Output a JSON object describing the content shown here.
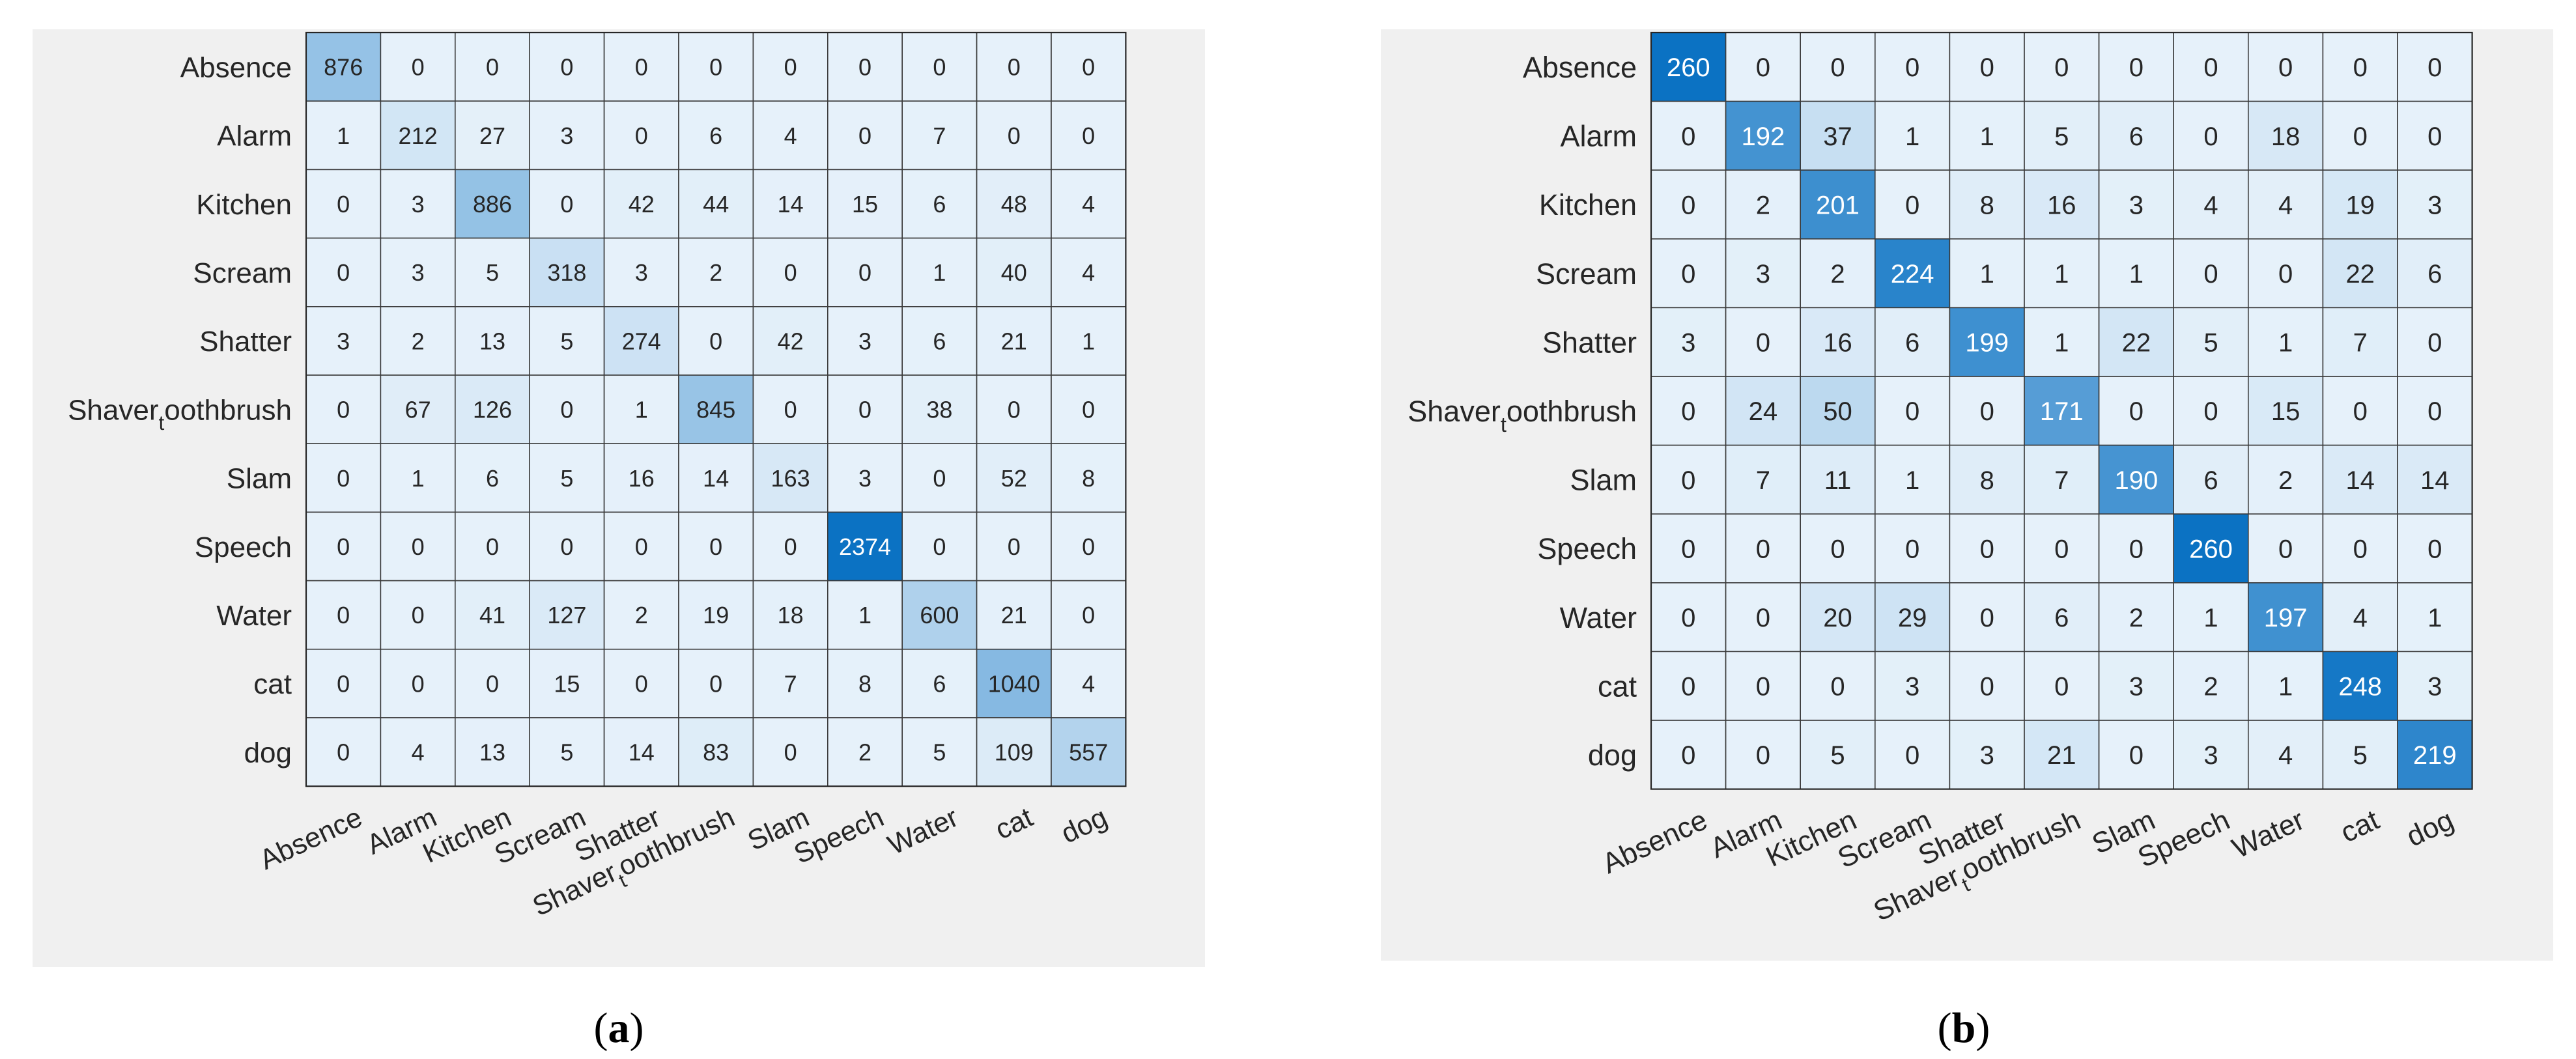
{
  "figure": {
    "panels": [
      {
        "caption_open": "(",
        "caption_letter": "a",
        "caption_close": ")"
      },
      {
        "caption_open": "(",
        "caption_letter": "b",
        "caption_close": ")"
      }
    ]
  },
  "chart_data": [
    {
      "type": "heatmap",
      "title": "",
      "row_labels": [
        "Absence",
        "Alarm",
        "Kitchen",
        "Scream",
        "Shatter",
        "Shaver_toothbrush",
        "Slam",
        "Speech",
        "Water",
        "cat",
        "dog"
      ],
      "col_labels": [
        "Absence",
        "Alarm",
        "Kitchen",
        "Scream",
        "Shatter",
        "Shaver_toothbrush",
        "Slam",
        "Speech",
        "Water",
        "cat",
        "dog"
      ],
      "values": [
        [
          876,
          0,
          0,
          0,
          0,
          0,
          0,
          0,
          0,
          0,
          0
        ],
        [
          1,
          212,
          27,
          3,
          0,
          6,
          4,
          0,
          7,
          0,
          0
        ],
        [
          0,
          3,
          886,
          0,
          42,
          44,
          14,
          15,
          6,
          48,
          4
        ],
        [
          0,
          3,
          5,
          318,
          3,
          2,
          0,
          0,
          1,
          40,
          4
        ],
        [
          3,
          2,
          13,
          5,
          274,
          0,
          42,
          3,
          6,
          21,
          1
        ],
        [
          0,
          67,
          126,
          0,
          1,
          845,
          0,
          0,
          38,
          0,
          0
        ],
        [
          0,
          1,
          6,
          5,
          16,
          14,
          163,
          3,
          0,
          52,
          8
        ],
        [
          0,
          0,
          0,
          0,
          0,
          0,
          0,
          2374,
          0,
          0,
          0
        ],
        [
          0,
          0,
          41,
          127,
          2,
          19,
          18,
          1,
          600,
          21,
          0
        ],
        [
          0,
          0,
          0,
          15,
          0,
          0,
          7,
          8,
          6,
          1040,
          4
        ],
        [
          0,
          4,
          13,
          5,
          14,
          83,
          0,
          2,
          5,
          109,
          557
        ]
      ],
      "color_low": "#e6f1fa",
      "color_high": "#0b72c3"
    },
    {
      "type": "heatmap",
      "title": "",
      "row_labels": [
        "Absence",
        "Alarm",
        "Kitchen",
        "Scream",
        "Shatter",
        "Shaver_toothbrush",
        "Slam",
        "Speech",
        "Water",
        "cat",
        "dog"
      ],
      "col_labels": [
        "Absence",
        "Alarm",
        "Kitchen",
        "Scream",
        "Shatter",
        "Shaver_toothbrush",
        "Slam",
        "Speech",
        "Water",
        "cat",
        "dog"
      ],
      "values": [
        [
          260,
          0,
          0,
          0,
          0,
          0,
          0,
          0,
          0,
          0,
          0
        ],
        [
          0,
          192,
          37,
          1,
          1,
          5,
          6,
          0,
          18,
          0,
          0
        ],
        [
          0,
          2,
          201,
          0,
          8,
          16,
          3,
          4,
          4,
          19,
          3
        ],
        [
          0,
          3,
          2,
          224,
          1,
          1,
          1,
          0,
          0,
          22,
          6
        ],
        [
          3,
          0,
          16,
          6,
          199,
          1,
          22,
          5,
          1,
          7,
          0
        ],
        [
          0,
          24,
          50,
          0,
          0,
          171,
          0,
          0,
          15,
          0,
          0
        ],
        [
          0,
          7,
          11,
          1,
          8,
          7,
          190,
          6,
          2,
          14,
          14
        ],
        [
          0,
          0,
          0,
          0,
          0,
          0,
          0,
          260,
          0,
          0,
          0
        ],
        [
          0,
          0,
          20,
          29,
          0,
          6,
          2,
          1,
          197,
          4,
          1
        ],
        [
          0,
          0,
          0,
          3,
          0,
          0,
          3,
          2,
          1,
          248,
          3
        ],
        [
          0,
          0,
          5,
          0,
          3,
          21,
          0,
          3,
          4,
          5,
          219
        ]
      ],
      "color_low": "#e6f1fa",
      "color_high": "#0b72c3"
    }
  ]
}
